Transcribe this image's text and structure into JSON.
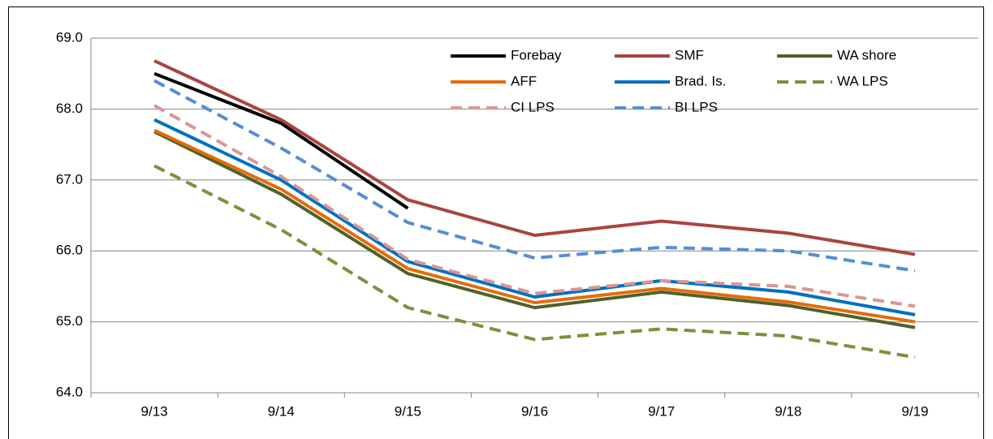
{
  "chart_data": {
    "type": "line",
    "categories": [
      "9/13",
      "9/14",
      "9/15",
      "9/16",
      "9/17",
      "9/18",
      "9/19"
    ],
    "series": [
      {
        "name": "Forebay",
        "color": "#000000",
        "dashed": false,
        "values": [
          68.5,
          67.8,
          66.6,
          null,
          null,
          null,
          null
        ]
      },
      {
        "name": "SMF",
        "color": "#a94440",
        "dashed": false,
        "values": [
          68.68,
          67.85,
          66.72,
          66.22,
          66.42,
          66.25,
          65.95
        ]
      },
      {
        "name": "WA shore",
        "color": "#4f6228",
        "dashed": false,
        "values": [
          67.68,
          66.8,
          65.68,
          65.2,
          65.42,
          65.23,
          64.92
        ]
      },
      {
        "name": "AFF",
        "color": "#e46c0a",
        "dashed": false,
        "values": [
          67.7,
          66.87,
          65.75,
          65.27,
          65.47,
          65.28,
          65.0
        ]
      },
      {
        "name": "Brad. Is.",
        "color": "#0070c0",
        "dashed": false,
        "values": [
          67.85,
          67.0,
          65.85,
          65.35,
          65.58,
          65.42,
          65.1
        ]
      },
      {
        "name": "WA LPS",
        "color": "#77933c",
        "dashed": true,
        "values": [
          67.2,
          66.3,
          65.2,
          64.75,
          64.9,
          64.8,
          64.5
        ]
      },
      {
        "name": "CI LPS",
        "color": "#d99694",
        "dashed": true,
        "values": [
          68.05,
          67.05,
          65.88,
          65.4,
          65.58,
          65.5,
          65.22
        ]
      },
      {
        "name": "BI LPS",
        "color": "#558ed5",
        "dashed": true,
        "values": [
          68.4,
          67.45,
          66.4,
          65.9,
          66.05,
          66.0,
          65.72
        ]
      }
    ],
    "ylim": [
      64,
      69
    ],
    "yticks": [
      {
        "value": 64,
        "label": "64.0"
      },
      {
        "value": 65,
        "label": "65.0"
      },
      {
        "value": 66,
        "label": "66.0"
      },
      {
        "value": 67,
        "label": "67.0"
      },
      {
        "value": 68,
        "label": "68.0"
      },
      {
        "value": 69,
        "label": "69.0"
      }
    ],
    "grid": true,
    "legend": "top-right"
  }
}
